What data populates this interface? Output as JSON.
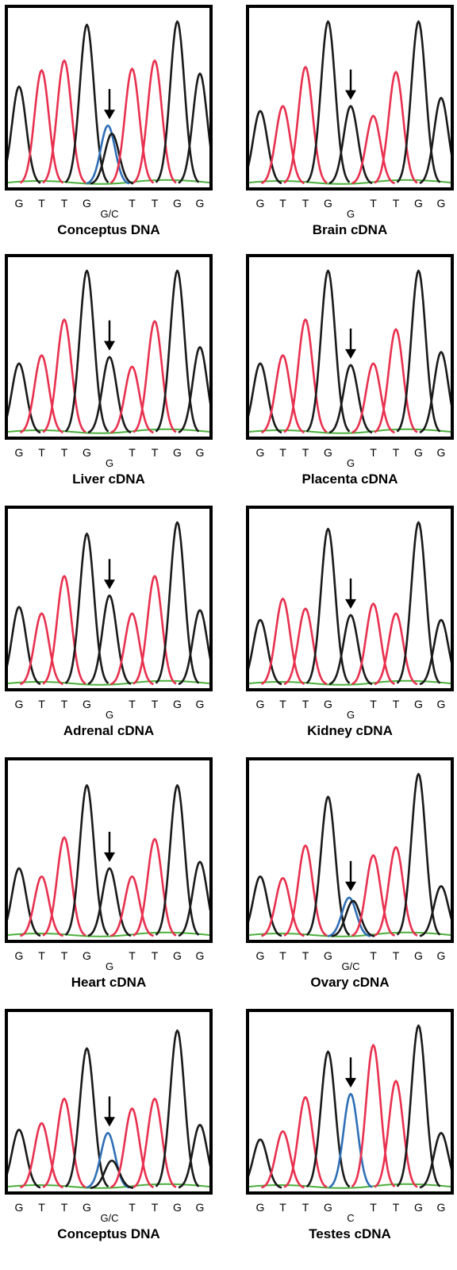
{
  "colors": {
    "G": "#1a1a1a",
    "T": "#e8314f",
    "C": "#2f6fb6",
    "A": "#4caf3c",
    "arrow": "#000000"
  },
  "chart_data": [
    {
      "type": "chromatogram",
      "title": "Conceptus DNA",
      "bases": [
        "G",
        "T",
        "T",
        "G",
        "G/C",
        "T",
        "T",
        "G",
        "G"
      ],
      "peaks": [
        {
          "base": "G",
          "height": 0.6
        },
        {
          "base": "T",
          "height": 0.7
        },
        {
          "base": "T",
          "height": 0.76
        },
        {
          "base": "G",
          "height": 0.98
        },
        {
          "base": "C",
          "height": 0.36
        },
        {
          "base": "G",
          "height": 0.31
        },
        {
          "base": "T",
          "height": 0.71
        },
        {
          "base": "T",
          "height": 0.76
        },
        {
          "base": "G",
          "height": 1.0
        },
        {
          "base": "G",
          "height": 0.68
        }
      ],
      "arrow_position": 5
    },
    {
      "type": "chromatogram",
      "title": "Brain cDNA",
      "bases": [
        "G",
        "T",
        "T",
        "G",
        "G",
        "T",
        "T",
        "G",
        "G"
      ],
      "peaks": [
        {
          "base": "G",
          "height": 0.45
        },
        {
          "base": "T",
          "height": 0.48
        },
        {
          "base": "T",
          "height": 0.72
        },
        {
          "base": "G",
          "height": 1.0
        },
        {
          "base": "G",
          "height": 0.48
        },
        {
          "base": "T",
          "height": 0.42
        },
        {
          "base": "T",
          "height": 0.69
        },
        {
          "base": "G",
          "height": 1.0
        },
        {
          "base": "G",
          "height": 0.53
        }
      ],
      "arrow_position": 5
    },
    {
      "type": "chromatogram",
      "title": "Liver cDNA",
      "bases": [
        "G",
        "T",
        "T",
        "G",
        "G",
        "T",
        "T",
        "G",
        "G"
      ],
      "peaks": [
        {
          "base": "G",
          "height": 0.43
        },
        {
          "base": "T",
          "height": 0.48
        },
        {
          "base": "T",
          "height": 0.7
        },
        {
          "base": "G",
          "height": 1.0
        },
        {
          "base": "G",
          "height": 0.47
        },
        {
          "base": "T",
          "height": 0.41
        },
        {
          "base": "T",
          "height": 0.69
        },
        {
          "base": "G",
          "height": 1.0
        },
        {
          "base": "G",
          "height": 0.53
        }
      ],
      "arrow_position": 5
    },
    {
      "type": "chromatogram",
      "title": "Placenta cDNA",
      "bases": [
        "G",
        "T",
        "T",
        "G",
        "G",
        "T",
        "T",
        "G",
        "G"
      ],
      "peaks": [
        {
          "base": "G",
          "height": 0.43
        },
        {
          "base": "T",
          "height": 0.48
        },
        {
          "base": "T",
          "height": 0.7
        },
        {
          "base": "G",
          "height": 1.0
        },
        {
          "base": "G",
          "height": 0.42
        },
        {
          "base": "T",
          "height": 0.43
        },
        {
          "base": "T",
          "height": 0.64
        },
        {
          "base": "G",
          "height": 1.0
        },
        {
          "base": "G",
          "height": 0.5
        }
      ],
      "arrow_position": 5
    },
    {
      "type": "chromatogram",
      "title": "Adrenal cDNA",
      "bases": [
        "G",
        "T",
        "T",
        "G",
        "G",
        "T",
        "T",
        "G",
        "G"
      ],
      "peaks": [
        {
          "base": "G",
          "height": 0.48
        },
        {
          "base": "T",
          "height": 0.44
        },
        {
          "base": "T",
          "height": 0.67
        },
        {
          "base": "G",
          "height": 0.93
        },
        {
          "base": "G",
          "height": 0.55
        },
        {
          "base": "T",
          "height": 0.44
        },
        {
          "base": "T",
          "height": 0.67
        },
        {
          "base": "G",
          "height": 1.0
        },
        {
          "base": "G",
          "height": 0.46
        }
      ],
      "arrow_position": 5
    },
    {
      "type": "chromatogram",
      "title": "Kidney cDNA",
      "bases": [
        "G",
        "T",
        "T",
        "G",
        "G",
        "T",
        "T",
        "G",
        "G"
      ],
      "peaks": [
        {
          "base": "G",
          "height": 0.4
        },
        {
          "base": "T",
          "height": 0.53
        },
        {
          "base": "T",
          "height": 0.47
        },
        {
          "base": "G",
          "height": 0.96
        },
        {
          "base": "G",
          "height": 0.43
        },
        {
          "base": "T",
          "height": 0.5
        },
        {
          "base": "T",
          "height": 0.44
        },
        {
          "base": "G",
          "height": 1.0
        },
        {
          "base": "G",
          "height": 0.4
        }
      ],
      "arrow_position": 5
    },
    {
      "type": "chromatogram",
      "title": "Heart cDNA",
      "bases": [
        "G",
        "T",
        "T",
        "G",
        "G",
        "T",
        "T",
        "G",
        "G"
      ],
      "peaks": [
        {
          "base": "G",
          "height": 0.42
        },
        {
          "base": "T",
          "height": 0.37
        },
        {
          "base": "T",
          "height": 0.61
        },
        {
          "base": "G",
          "height": 0.93
        },
        {
          "base": "G",
          "height": 0.42
        },
        {
          "base": "T",
          "height": 0.37
        },
        {
          "base": "T",
          "height": 0.6
        },
        {
          "base": "G",
          "height": 0.93
        },
        {
          "base": "G",
          "height": 0.46
        }
      ],
      "arrow_position": 5
    },
    {
      "type": "chromatogram",
      "title": "Ovary cDNA",
      "bases": [
        "G",
        "T",
        "T",
        "G",
        "G/C",
        "T",
        "T",
        "G",
        "G"
      ],
      "peaks": [
        {
          "base": "G",
          "height": 0.37
        },
        {
          "base": "T",
          "height": 0.36
        },
        {
          "base": "T",
          "height": 0.56
        },
        {
          "base": "G",
          "height": 0.86
        },
        {
          "base": "C",
          "height": 0.24
        },
        {
          "base": "G",
          "height": 0.22
        },
        {
          "base": "T",
          "height": 0.5
        },
        {
          "base": "T",
          "height": 0.55
        },
        {
          "base": "G",
          "height": 1.0
        },
        {
          "base": "G",
          "height": 0.31
        }
      ],
      "arrow_position": 5
    },
    {
      "type": "chromatogram",
      "title": "Conceptus DNA",
      "bases": [
        "G",
        "T",
        "T",
        "G",
        "G/C",
        "T",
        "T",
        "G",
        "G"
      ],
      "peaks": [
        {
          "base": "G",
          "height": 0.36
        },
        {
          "base": "T",
          "height": 0.4
        },
        {
          "base": "T",
          "height": 0.55
        },
        {
          "base": "G",
          "height": 0.86
        },
        {
          "base": "C",
          "height": 0.34
        },
        {
          "base": "G",
          "height": 0.17
        },
        {
          "base": "T",
          "height": 0.49
        },
        {
          "base": "T",
          "height": 0.55
        },
        {
          "base": "G",
          "height": 0.97
        },
        {
          "base": "G",
          "height": 0.39
        }
      ],
      "arrow_position": 5
    },
    {
      "type": "chromatogram",
      "title": "Testes cDNA",
      "bases": [
        "G",
        "T",
        "T",
        "G",
        "C",
        "T",
        "T",
        "G",
        "G"
      ],
      "peaks": [
        {
          "base": "G",
          "height": 0.3
        },
        {
          "base": "T",
          "height": 0.35
        },
        {
          "base": "T",
          "height": 0.56
        },
        {
          "base": "G",
          "height": 0.84
        },
        {
          "base": "C",
          "height": 0.58
        },
        {
          "base": "T",
          "height": 0.88
        },
        {
          "base": "T",
          "height": 0.66
        },
        {
          "base": "G",
          "height": 1.0
        },
        {
          "base": "G",
          "height": 0.34
        }
      ],
      "arrow_position": 5
    }
  ]
}
